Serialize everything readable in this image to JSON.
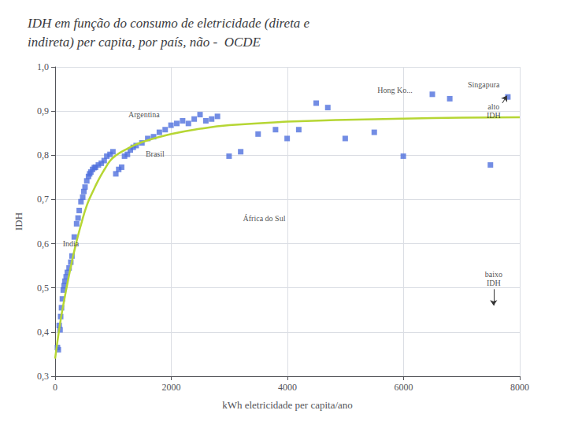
{
  "chart_data": {
    "type": "scatter",
    "title": "IDH em função do consumo de eletricidade (direta e\nindireta) per capita, por país, não -  OCDE",
    "xlabel": "kWh eletricidade per capita/ano",
    "ylabel": "IDH",
    "xlim": [
      0,
      8000
    ],
    "ylim": [
      0.3,
      1.0
    ],
    "xticks": [
      0,
      2000,
      4000,
      6000,
      8000
    ],
    "yticks": [
      {
        "value": 0.3,
        "label": "0,3"
      },
      {
        "value": 0.4,
        "label": "0,4"
      },
      {
        "value": 0.5,
        "label": "0,5"
      },
      {
        "value": 0.6,
        "label": "0,6"
      },
      {
        "value": 0.7,
        "label": "0,7"
      },
      {
        "value": 0.8,
        "label": "0,8"
      },
      {
        "value": 0.9,
        "label": "0,9"
      },
      {
        "value": 1.0,
        "label": "1,0"
      }
    ],
    "grid": true,
    "series": [
      {
        "type": "scatter",
        "marker": "square",
        "x": [
          40,
          55,
          70,
          85,
          95,
          110,
          125,
          140,
          155,
          170,
          190,
          210,
          240,
          270,
          290,
          330,
          370,
          395,
          415,
          445,
          475,
          495,
          515,
          545,
          575,
          595,
          615,
          645,
          675,
          695,
          745,
          795,
          845,
          890,
          945,
          995,
          1045,
          1095,
          1145,
          1195,
          1245,
          1295,
          1345,
          1395,
          1495,
          1595,
          1695,
          1795,
          1895,
          1995,
          2095,
          2195,
          2295,
          2395,
          2495,
          2595,
          2695,
          2795,
          2995,
          3195,
          3495,
          3795,
          3995,
          4195,
          4495,
          4695,
          4995,
          5495,
          5995,
          6495,
          6795,
          7495,
          7795
        ],
        "values": [
          0.365,
          0.36,
          0.415,
          0.405,
          0.435,
          0.455,
          0.475,
          0.495,
          0.505,
          0.515,
          0.525,
          0.535,
          0.545,
          0.558,
          0.572,
          0.615,
          0.645,
          0.658,
          0.675,
          0.695,
          0.705,
          0.718,
          0.728,
          0.742,
          0.752,
          0.758,
          0.762,
          0.768,
          0.772,
          0.773,
          0.778,
          0.782,
          0.788,
          0.798,
          0.802,
          0.808,
          0.758,
          0.768,
          0.773,
          0.798,
          0.802,
          0.812,
          0.818,
          0.822,
          0.828,
          0.838,
          0.842,
          0.852,
          0.858,
          0.868,
          0.872,
          0.878,
          0.872,
          0.882,
          0.892,
          0.878,
          0.882,
          0.888,
          0.798,
          0.808,
          0.848,
          0.858,
          0.838,
          0.858,
          0.918,
          0.908,
          0.838,
          0.852,
          0.798,
          0.938,
          0.928,
          0.778,
          0.932
        ]
      },
      {
        "type": "line",
        "line_style": "solid",
        "x": [
          0,
          80,
          150,
          250,
          350,
          450,
          550,
          650,
          750,
          850,
          950,
          1050,
          1200,
          1500,
          2000,
          2500,
          3000,
          4000,
          5000,
          6000,
          7000,
          8000
        ],
        "values": [
          0.34,
          0.415,
          0.468,
          0.535,
          0.595,
          0.645,
          0.688,
          0.718,
          0.745,
          0.768,
          0.788,
          0.8,
          0.812,
          0.83,
          0.848,
          0.86,
          0.868,
          0.876,
          0.88,
          0.883,
          0.885,
          0.886
        ]
      }
    ],
    "annotations": [
      {
        "text": "Argentina",
        "x": 1530,
        "y": 0.893
      },
      {
        "text": "Brasil",
        "x": 1720,
        "y": 0.803
      },
      {
        "text": "India",
        "x": 270,
        "y": 0.6
      },
      {
        "text": "África do Sul",
        "x": 3600,
        "y": 0.658
      },
      {
        "text": "Hong Ko...",
        "x": 5850,
        "y": 0.948
      },
      {
        "text": "Singapura",
        "x": 7380,
        "y": 0.96
      },
      {
        "text": "alto\nIDH",
        "x": 7550,
        "y": 0.9,
        "arrow": {
          "from": [
            7700,
            0.918
          ],
          "to": [
            7780,
            0.935
          ]
        }
      },
      {
        "text": "baixo\nIDH",
        "x": 7550,
        "y": 0.52,
        "arrow": {
          "from": [
            7550,
            0.497
          ],
          "to": [
            7550,
            0.46
          ]
        }
      }
    ]
  }
}
